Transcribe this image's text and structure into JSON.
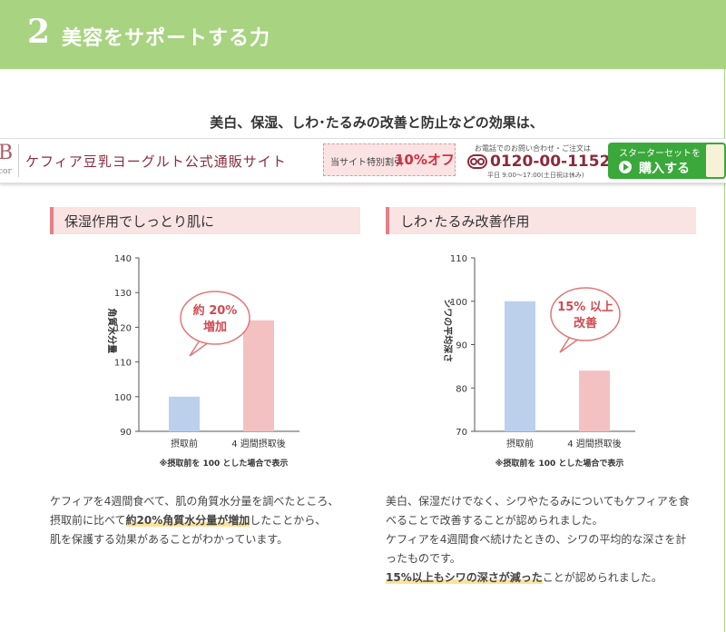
{
  "header": {
    "number": "2",
    "title": "美容をサポートする力"
  },
  "lead": "美白、保湿、しわ･たるみの改善と防止などの効果は、",
  "banner": {
    "logo_letter": "B",
    "logo_text": "cor",
    "site_name": "ケフィア豆乳ヨーグルト公式通販サイト",
    "discount_label": "当サイト特別割引",
    "discount_value": "10%オフ",
    "phone_note": "お電話でのお問い合わせ・ご注文は",
    "phone_number": "0120-00-1152",
    "phone_hours": "平日 9:00～17:00(土日祝は休み)",
    "buy_sub": "スターターセットを",
    "buy_label": "購入する"
  },
  "left": {
    "heading": "保湿作用でしっとり肌に",
    "desc_line1": "ケフィアを4週間食べて、肌の角質水分量を調べたところ、",
    "desc_line2_pre": "摂取前に比べて",
    "desc_line2_hl": "約20%角質水分量が増加",
    "desc_line2_post": "したことから、",
    "desc_line3": "肌を保護する効果があることがわかっています。"
  },
  "right": {
    "heading": "しわ･たるみ改善作用",
    "desc_line1": "美白、保湿だけでなく、シワやたるみについてもケフィアを食",
    "desc_line2": "べることで改善することが認められました。",
    "desc_line3": "ケフィアを4週間食べ続けたときの、シワの平均的な深さを計",
    "desc_line4": "ったものです。",
    "desc_line5_hl": "15%以上もシワの深さが減った",
    "desc_line5_post": "ことが認められました。"
  },
  "chart_data": [
    {
      "type": "bar",
      "categories": [
        "摂取前",
        "4 週間摂取後"
      ],
      "values": [
        100,
        122
      ],
      "colors": [
        "#bcd0ec",
        "#f3c1c1"
      ],
      "ylabel": "角質水分量",
      "ylim": [
        90,
        140
      ],
      "yticks": [
        90,
        100,
        110,
        120,
        130,
        140
      ],
      "note": "※摂取前を 100 とした場合で表示",
      "bubble": [
        "約 20%",
        "増加"
      ]
    },
    {
      "type": "bar",
      "categories": [
        "摂取前",
        "4 週間摂取後"
      ],
      "values": [
        100,
        84
      ],
      "colors": [
        "#bcd0ec",
        "#f3c1c1"
      ],
      "ylabel": "シワの平均深さ",
      "ylim": [
        70,
        110
      ],
      "yticks": [
        70,
        80,
        90,
        100,
        110
      ],
      "note": "※摂取前を 100 とした場合で表示",
      "bubble": [
        "15% 以上",
        "改善"
      ]
    }
  ]
}
